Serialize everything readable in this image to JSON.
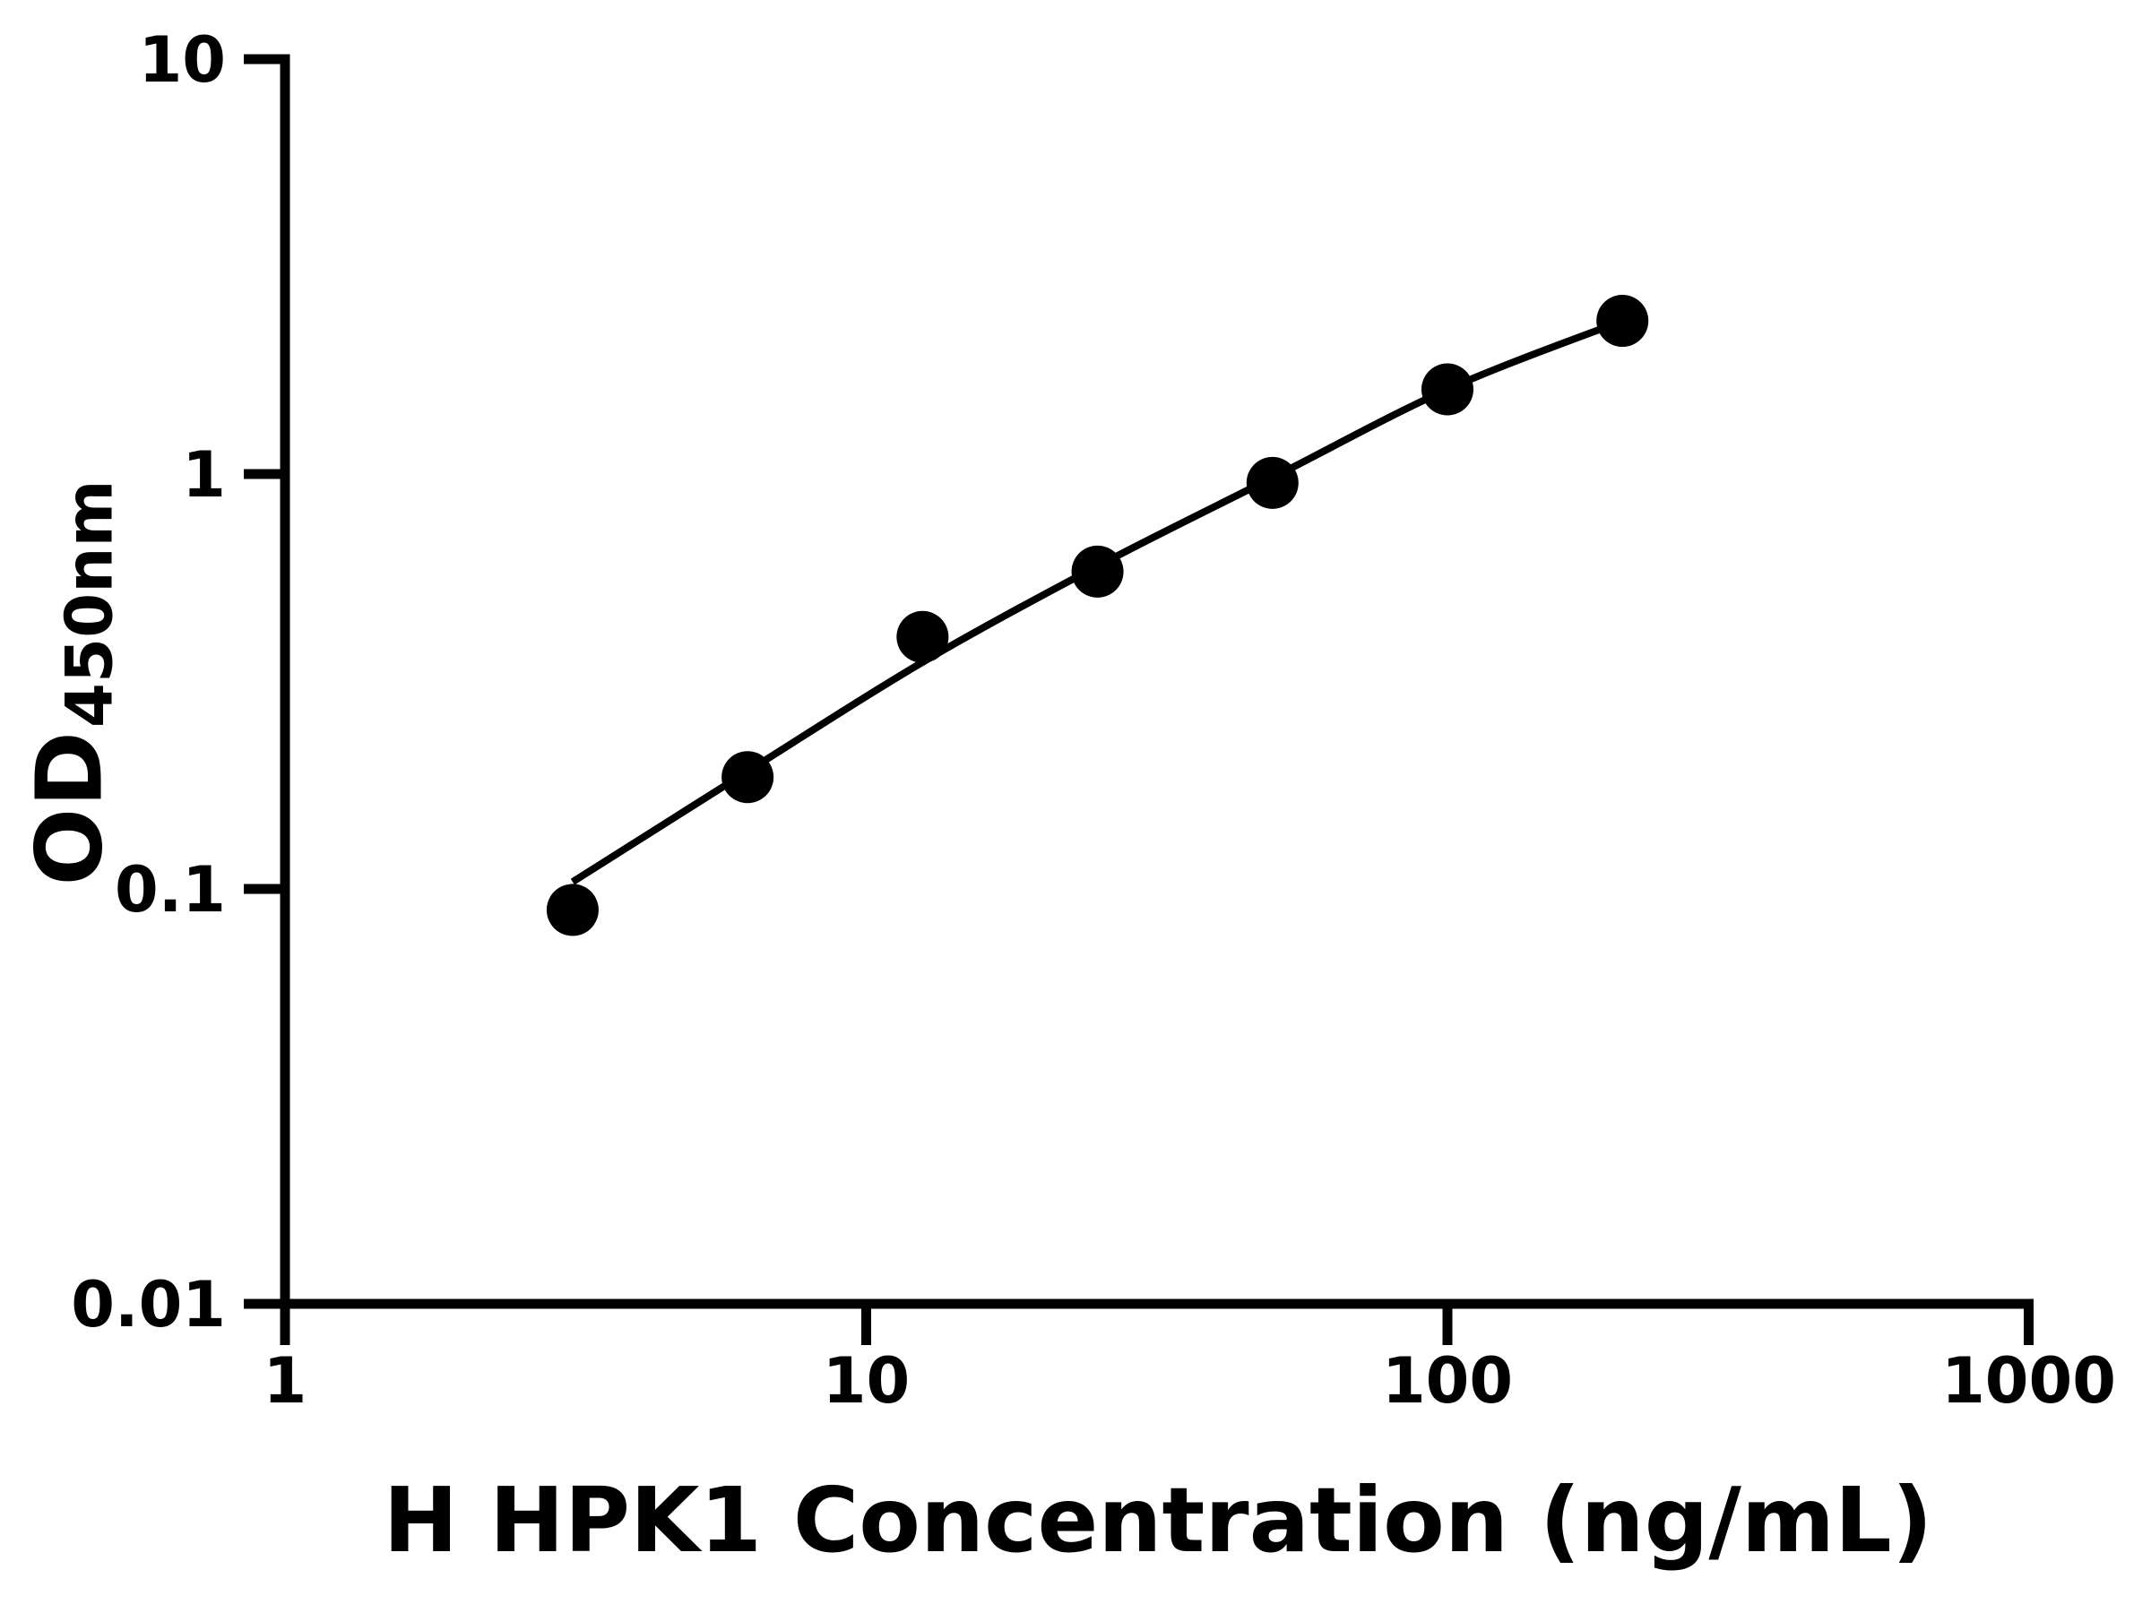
{
  "figure": {
    "background_color": "#ffffff",
    "ink_color": "#000000"
  },
  "chart_data": {
    "type": "scatter",
    "title": "",
    "xlabel": "H HPK1 Concentration (ng/mL)",
    "ylabel": "OD",
    "ylabel_subscript": "450nm",
    "x_scale": "log",
    "y_scale": "log",
    "xlim": [
      1,
      1000
    ],
    "ylim": [
      0.01,
      10
    ],
    "x_ticks": [
      1,
      10,
      100,
      1000
    ],
    "x_tick_labels": [
      "1",
      "10",
      "100",
      "1000"
    ],
    "y_ticks": [
      0.01,
      0.1,
      1,
      10
    ],
    "y_tick_labels": [
      "0.01",
      "0.1",
      "1",
      "10"
    ],
    "grid": false,
    "legend": null,
    "series": [
      {
        "name": "standard-curve-fit",
        "type": "line",
        "color": "#000000",
        "x": [
          3.125,
          6.25,
          12.5,
          25,
          50,
          100,
          200
        ],
        "y": [
          0.104,
          0.192,
          0.352,
          0.6,
          0.98,
          1.6,
          2.34
        ]
      },
      {
        "name": "standard-points",
        "type": "scatter",
        "marker": "filled-circle",
        "color": "#000000",
        "x": [
          3.125,
          6.25,
          12.5,
          25,
          50,
          100,
          200
        ],
        "y": [
          0.089,
          0.186,
          0.405,
          0.582,
          0.952,
          1.6,
          2.34
        ]
      }
    ]
  }
}
